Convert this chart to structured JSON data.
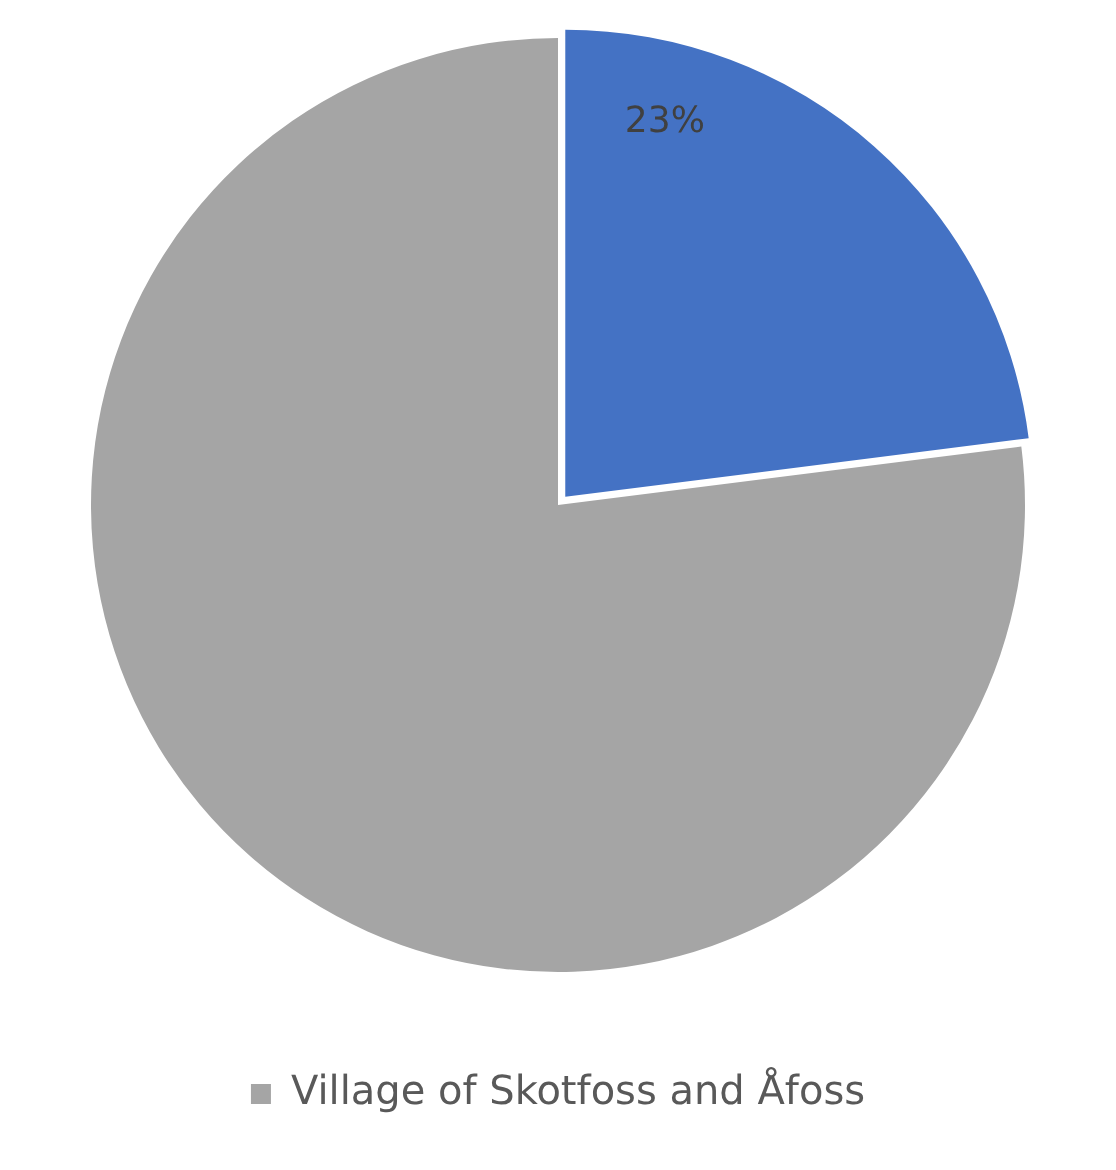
{
  "chart_data": {
    "type": "pie",
    "categories": [
      null,
      "Village of Skotfoss and Åfoss"
    ],
    "values": [
      23,
      77
    ],
    "colors": [
      "#4472c4",
      "#a5a5a5"
    ],
    "value_labels": [
      "23%",
      null
    ],
    "legend": "bottom"
  }
}
